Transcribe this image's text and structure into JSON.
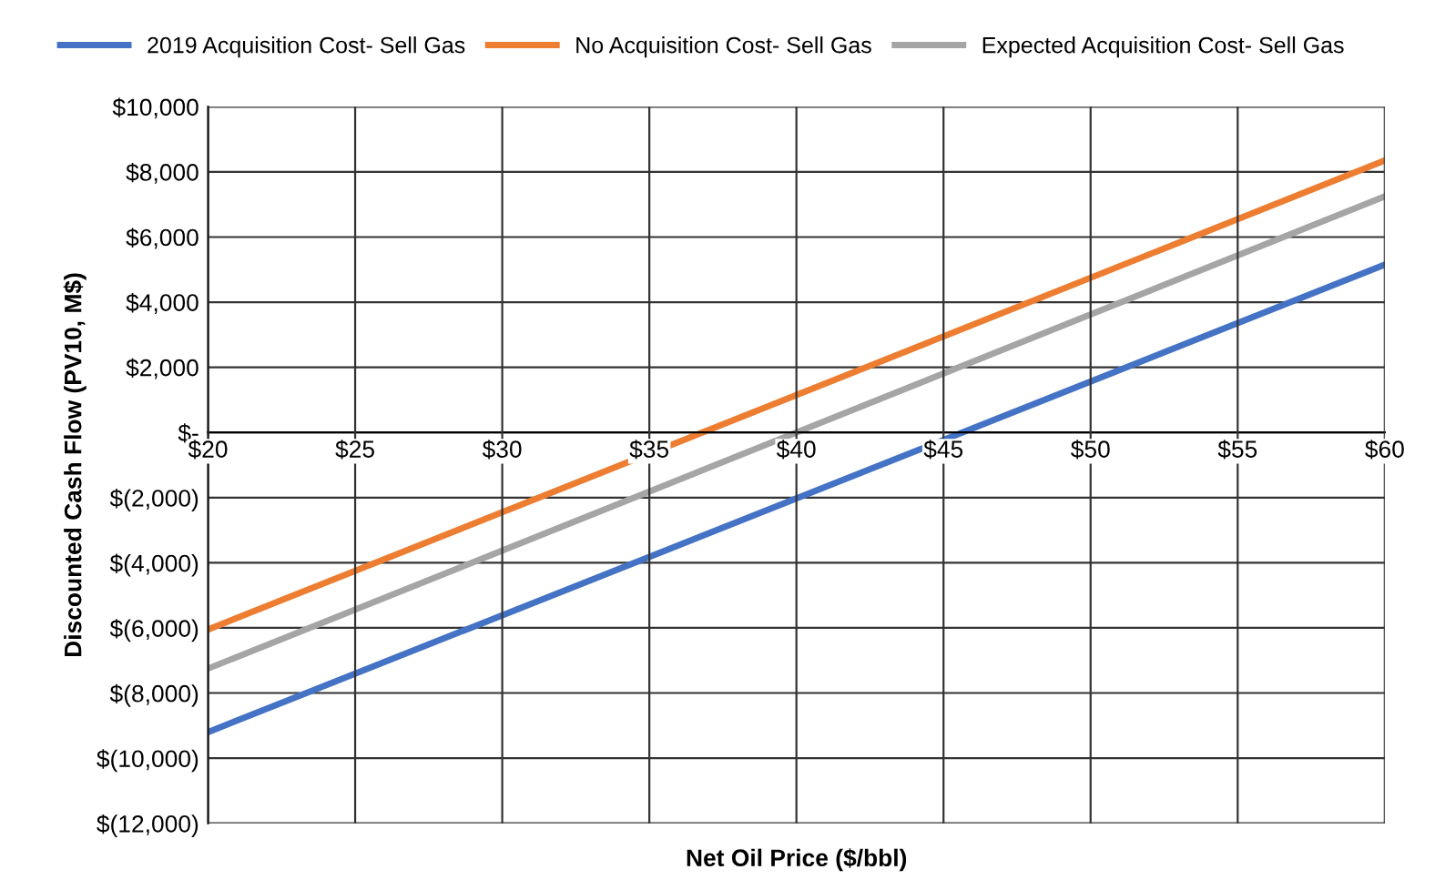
{
  "chart_data": {
    "type": "line",
    "xlabel": "Net Oil Price ($/bbl)",
    "ylabel": "Discounted Cash Flow (PV10, M$)",
    "x": [
      20,
      60
    ],
    "series": [
      {
        "name": "2019 Acquisition Cost- Sell Gas",
        "color": "#4472c4",
        "values": [
          -9200,
          5150
        ]
      },
      {
        "name": "No Acquisition Cost- Sell Gas",
        "color": "#ed7d31",
        "values": [
          -6050,
          8350
        ]
      },
      {
        "name": "Expected Acquisition Cost- Sell Gas",
        "color": "#a5a5a5",
        "values": [
          -7250,
          7250
        ]
      }
    ],
    "xlim": [
      20,
      60
    ],
    "xticks": [
      {
        "value": 20,
        "label": "$20"
      },
      {
        "value": 25,
        "label": "$25"
      },
      {
        "value": 30,
        "label": "$30"
      },
      {
        "value": 35,
        "label": "$35"
      },
      {
        "value": 40,
        "label": "$40"
      },
      {
        "value": 45,
        "label": "$45"
      },
      {
        "value": 50,
        "label": "$50"
      },
      {
        "value": 55,
        "label": "$55"
      },
      {
        "value": 60,
        "label": "$60"
      }
    ],
    "ylim": [
      -12000,
      10000
    ],
    "yticks": [
      {
        "value": -12000,
        "label": "$(12,000)"
      },
      {
        "value": -10000,
        "label": "$(10,000)"
      },
      {
        "value": -8000,
        "label": "$(8,000)"
      },
      {
        "value": -6000,
        "label": "$(6,000)"
      },
      {
        "value": -4000,
        "label": "$(4,000)"
      },
      {
        "value": -2000,
        "label": "$(2,000)"
      },
      {
        "value": 0,
        "label": "$-"
      },
      {
        "value": 2000,
        "label": "$2,000"
      },
      {
        "value": 4000,
        "label": "$4,000"
      },
      {
        "value": 6000,
        "label": "$6,000"
      },
      {
        "value": 8000,
        "label": "$8,000"
      },
      {
        "value": 10000,
        "label": "$10,000"
      }
    ],
    "grid": true,
    "legend": "top",
    "marker": "none",
    "line_style": "solid"
  }
}
